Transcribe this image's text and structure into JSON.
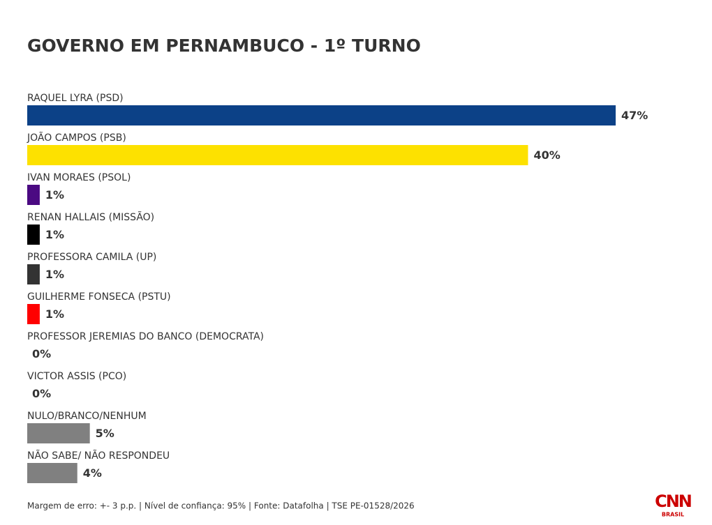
{
  "chart_data": {
    "type": "bar",
    "title": "GOVERNO EM PERNAMBUCO - 1º TURNO",
    "categories": [
      "RAQUEL LYRA (PSD)",
      "JOÃO CAMPOS (PSB)",
      "IVAN MORAES (PSOL)",
      "RENAN HALLAIS (MISSÃO)",
      "PROFESSORA CAMILA (UP)",
      "GUILHERME FONSECA (PSTU)",
      "PROFESSOR JEREMIAS DO BANCO (DEMOCRATA)",
      "VICTOR ASSIS (PCO)",
      "NULO/BRANCO/NENHUM",
      "NÃO SABE/ NÃO RESPONDEU"
    ],
    "values": [
      47,
      40,
      1,
      1,
      1,
      1,
      0,
      0,
      5,
      4
    ],
    "value_labels": [
      "47%",
      "40%",
      "1%",
      "1%",
      "1%",
      "1%",
      "0%",
      "0%",
      "5%",
      "4%"
    ],
    "colors": [
      "#0c4187",
      "#fde100",
      "#4b0a82",
      "#000000",
      "#333333",
      "#ff0000",
      "#333333",
      "#333333",
      "#808080",
      "#808080"
    ],
    "note": "Margem de erro: +- 3 p.p. | Nível de confiança: 95% | Fonte: Datafolha | TSE PE-01528/2026"
  },
  "logo": {
    "name": "CNN",
    "sub": "BRASIL"
  }
}
